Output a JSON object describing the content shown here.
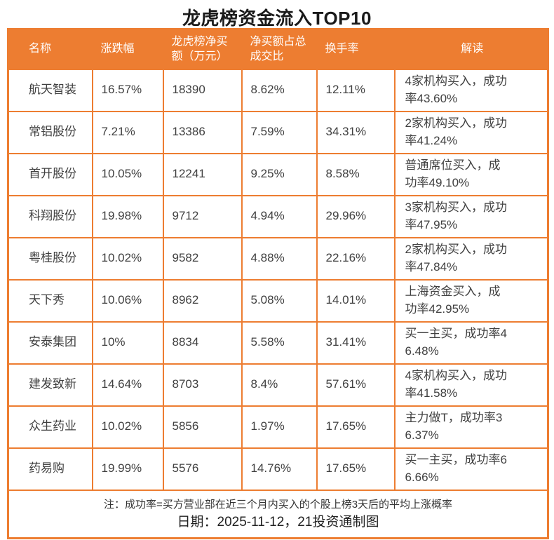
{
  "title": "龙虎榜资金流入TOP10",
  "colors": {
    "accent": "#ED7D31",
    "header_text": "#FFFFFF",
    "body_text": "#404040"
  },
  "chart_data": {
    "type": "table",
    "title": "龙虎榜资金流入TOP10",
    "columns": [
      "名称",
      "涨跌幅",
      "龙虎榜净买额（万元）",
      "净买额占总成交比",
      "换手率",
      "解读"
    ],
    "rows": [
      [
        "航天智装",
        "16.57%",
        "18390",
        "8.62%",
        "12.11%",
        "4家机构买入，成功率43.60%"
      ],
      [
        "常铝股份",
        "7.21%",
        "13386",
        "7.59%",
        "34.31%",
        "2家机构买入，成功率41.24%"
      ],
      [
        "首开股份",
        "10.05%",
        "12241",
        "9.25%",
        "8.58%",
        "普通席位买入，成功率49.10%"
      ],
      [
        "科翔股份",
        "19.98%",
        "9712",
        "4.94%",
        "29.96%",
        "3家机构买入，成功率47.95%"
      ],
      [
        "粤桂股份",
        "10.02%",
        "9582",
        "4.88%",
        "22.16%",
        "2家机构买入，成功率47.84%"
      ],
      [
        "天下秀",
        "10.06%",
        "8962",
        "5.08%",
        "14.01%",
        "上海资金买入，成功率42.95%"
      ],
      [
        "安泰集团",
        "10%",
        "8834",
        "5.58%",
        "31.41%",
        "买一主买，成功率46.48%"
      ],
      [
        "建发致新",
        "14.64%",
        "8703",
        "8.4%",
        "57.61%",
        "4家机构买入，成功率41.58%"
      ],
      [
        "众生药业",
        "10.02%",
        "5856",
        "1.97%",
        "17.65%",
        "主力做T，成功率36.37%"
      ],
      [
        "药易购",
        "19.99%",
        "5576",
        "14.76%",
        "17.65%",
        "买一主买，成功率66.66%"
      ]
    ]
  },
  "footer": {
    "note": "注：成功率=买方营业部在近三个月内买入的个股上榜3天后的平均上涨概率",
    "date_line": "日期：2025-11-12，21投资通制图"
  }
}
